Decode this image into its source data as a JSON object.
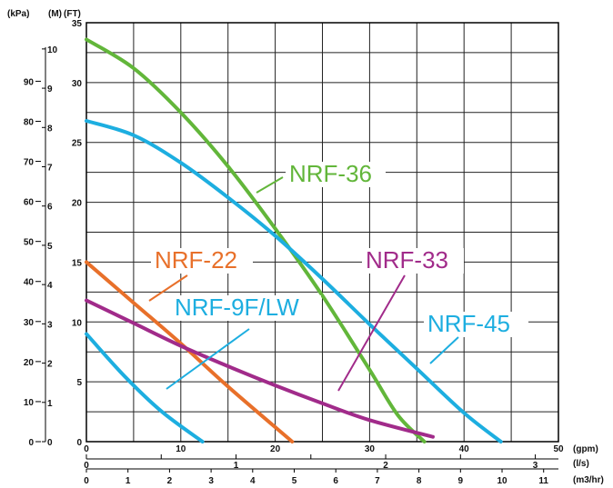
{
  "chart_data": {
    "type": "line",
    "units": {
      "kpa": "(kPa)",
      "m": "(M)",
      "ft": "(FT)",
      "gpm": "(gpm)",
      "ls": "(l/s)",
      "m3hr": "(m3/hr)"
    },
    "axes": {
      "gpm": {
        "ticks": [
          "0",
          "10",
          "20",
          "30",
          "40",
          "50"
        ],
        "range": [
          0,
          50
        ]
      },
      "ft": {
        "ticks": [
          "0",
          "5",
          "10",
          "15",
          "20",
          "25",
          "30",
          "35"
        ],
        "range": [
          0,
          35
        ]
      },
      "m": {
        "ticks": [
          "0",
          "1",
          "2",
          "3",
          "4",
          "5",
          "6",
          "7",
          "8",
          "9",
          "10"
        ]
      },
      "kpa": {
        "ticks": [
          "0",
          "10",
          "20",
          "30",
          "40",
          "50",
          "60",
          "70",
          "80",
          "90"
        ]
      },
      "ls": {
        "ticks": [
          "0",
          "1",
          "2",
          "3"
        ]
      },
      "m3hr": {
        "ticks": [
          "0",
          "1",
          "2",
          "3",
          "4",
          "5",
          "6",
          "7",
          "8",
          "9",
          "10",
          "11"
        ]
      }
    },
    "grid": true,
    "series": [
      {
        "name": "NRF-36",
        "color": "#62b63a",
        "points": [
          [
            0,
            33.6
          ],
          [
            5,
            31.2
          ],
          [
            10,
            27.5
          ],
          [
            15,
            23.0
          ],
          [
            20,
            17.8
          ],
          [
            25,
            12.2
          ],
          [
            30,
            6.0
          ],
          [
            33,
            2.2
          ],
          [
            35.8,
            0
          ]
        ]
      },
      {
        "name": "NRF-45",
        "color": "#1daee0",
        "points": [
          [
            0,
            26.8
          ],
          [
            5,
            25.6
          ],
          [
            10,
            23.3
          ],
          [
            15,
            20.4
          ],
          [
            20,
            17.2
          ],
          [
            25,
            13.6
          ],
          [
            30,
            9.8
          ],
          [
            35,
            6.1
          ],
          [
            40,
            2.4
          ],
          [
            43.9,
            0
          ]
        ]
      },
      {
        "name": "NRF-22",
        "color": "#e8702a",
        "points": [
          [
            0,
            15.0
          ],
          [
            5,
            11.6
          ],
          [
            10,
            8.2
          ],
          [
            15,
            4.6
          ],
          [
            21.8,
            0
          ]
        ]
      },
      {
        "name": "NRF-33",
        "color": "#a12b8a",
        "points": [
          [
            0,
            11.8
          ],
          [
            5,
            9.9
          ],
          [
            10,
            8.0
          ],
          [
            15,
            6.3
          ],
          [
            20,
            4.7
          ],
          [
            25,
            3.2
          ],
          [
            30,
            1.8
          ],
          [
            36.7,
            0.4
          ]
        ]
      },
      {
        "name": "NRF-9F/LW",
        "color": "#1daee0",
        "points": [
          [
            0,
            9.0
          ],
          [
            4,
            5.5
          ],
          [
            8,
            2.5
          ],
          [
            12.3,
            0
          ]
        ]
      }
    ],
    "labels": [
      {
        "text": "NRF-36",
        "series": "NRF-36"
      },
      {
        "text": "NRF-22",
        "series": "NRF-22"
      },
      {
        "text": "NRF-33",
        "series": "NRF-33"
      },
      {
        "text": "NRF-9F/LW",
        "series": "NRF-9F/LW"
      },
      {
        "text": "NRF-45",
        "series": "NRF-45"
      }
    ]
  }
}
